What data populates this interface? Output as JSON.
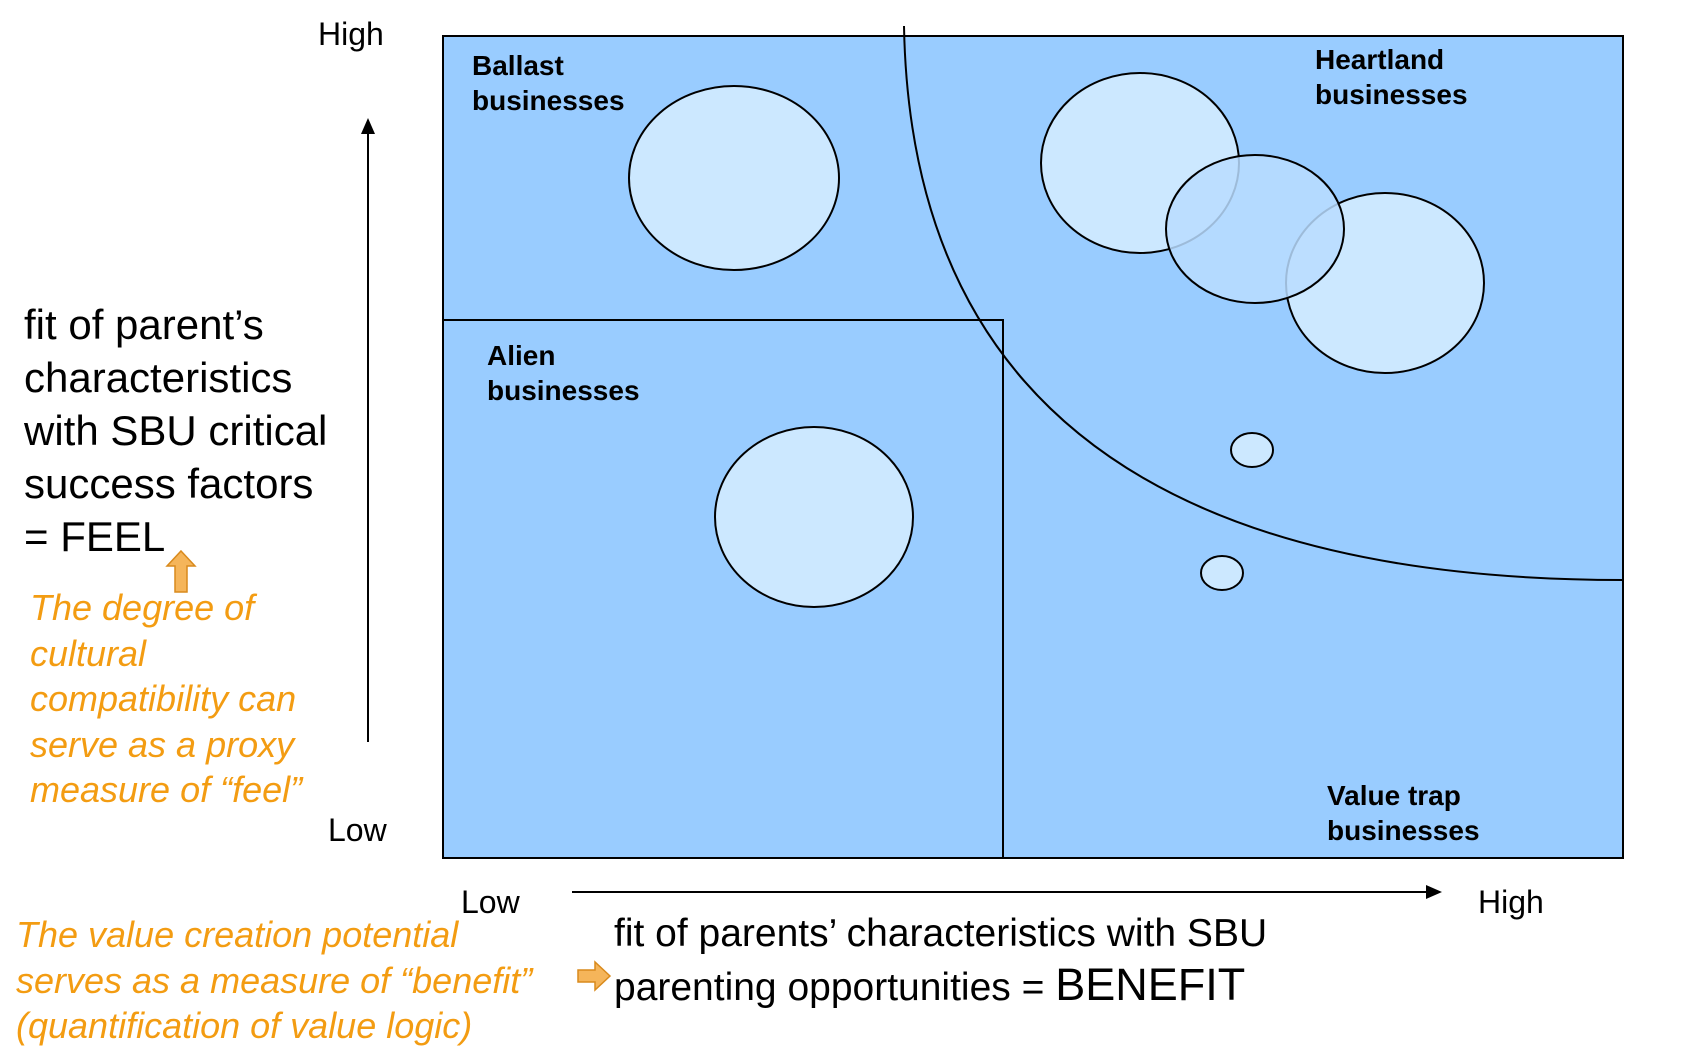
{
  "y_axis": {
    "high_label": "High",
    "low_label": "Low",
    "title_line1": "fit of parent’s",
    "title_line2": "characteristics",
    "title_line3": "with SBU critical",
    "title_line4": "success factors",
    "title_line5": "= FEEL",
    "note_line1": "The degree of",
    "note_line2": "cultural",
    "note_line3": "compatibility can",
    "note_line4": "serve as a proxy",
    "note_line5": "measure of “feel”"
  },
  "x_axis": {
    "low_label": "Low",
    "high_label": "High",
    "title_line1": "fit of parents’ characteristics with SBU",
    "title_line2_a": "parenting opportunities = ",
    "title_line2_b": "BENEFIT",
    "note_line1": "The value creation potential",
    "note_line2": "serves as a measure of “benefit”",
    "note_line3": "(quantification of value logic)"
  },
  "regions": {
    "ballast_line1": "Ballast",
    "ballast_line2": "businesses",
    "heartland_line1": "Heartland",
    "heartland_line2": "businesses",
    "alien_line1": "Alien",
    "alien_line2": "businesses",
    "valuetrap_line1": "Value trap",
    "valuetrap_line2": "businesses"
  },
  "colors": {
    "matrix_fill": "#99ccff",
    "bubble_fill": "#cce8ff",
    "accent_orange": "#f39c12",
    "arrow_fill": "#f5b55a",
    "line": "#000000"
  }
}
